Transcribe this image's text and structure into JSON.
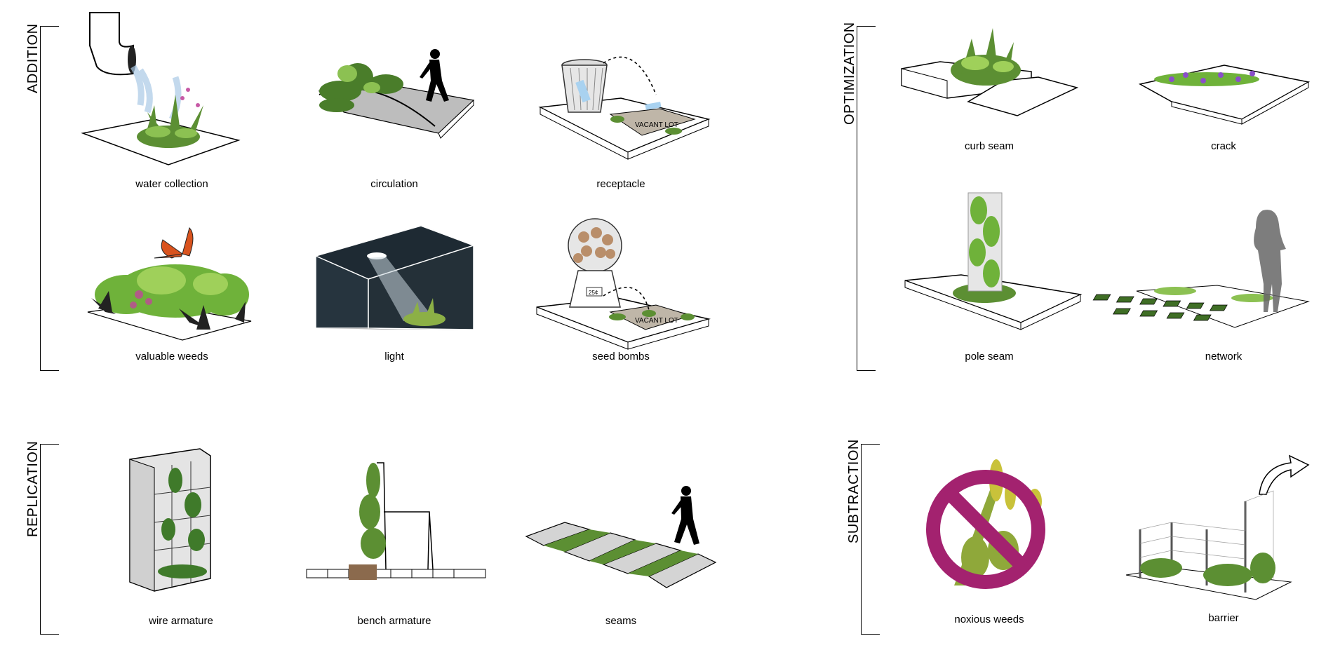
{
  "groups": {
    "addition": "ADDITION",
    "optimization": "OPTIMIZATION",
    "replication": "REPLICATION",
    "subtraction": "SUBTRACTION"
  },
  "items": {
    "water_collection": "water collection",
    "circulation": "circulation",
    "receptacle": "receptacle",
    "valuable_weeds": "valuable weeds",
    "light": "light",
    "seed_bombs": "seed bombs",
    "curb_seam": "curb seam",
    "crack": "crack",
    "pole_seam": "pole seam",
    "network": "network",
    "wire_armature": "wire armature",
    "bench_armature": "bench armature",
    "seams": "seams",
    "noxious_weeds": "noxious weeds",
    "barrier": "barrier"
  },
  "in_image_text": {
    "vacant_lot": "VACANT LOT",
    "price": "25¢"
  },
  "colors": {
    "plant_green": "#4f8a2e",
    "plant_light": "#8cc152",
    "light_box": "#1e2a33",
    "no_sign": "#a3226f",
    "butterfly": "#d9531e",
    "flower_purple": "#8a4fc9"
  }
}
